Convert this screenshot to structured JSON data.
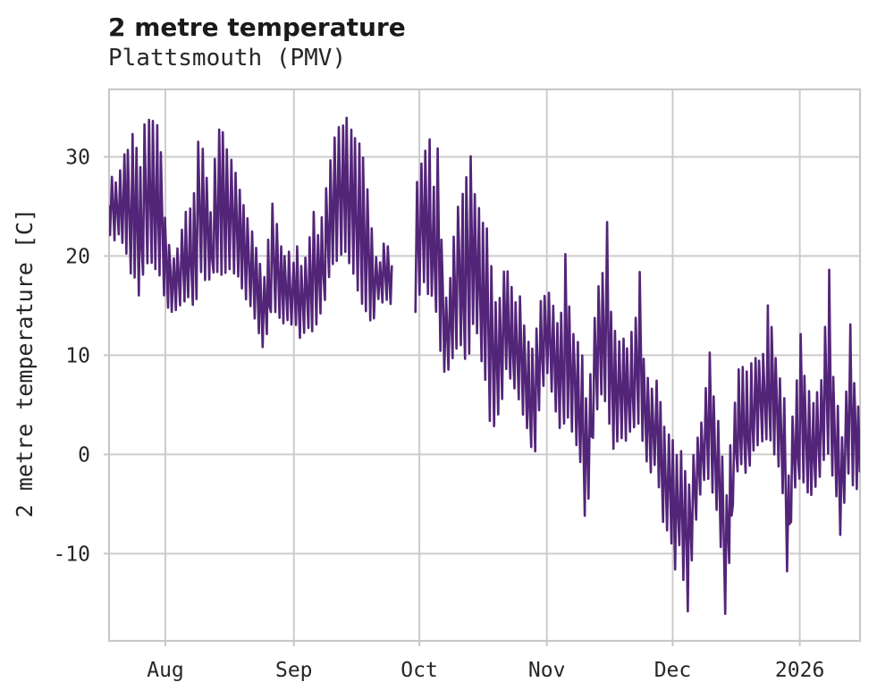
{
  "header": {
    "title": "2 metre temperature",
    "subtitle": "Plattsmouth (PMV)"
  },
  "chart_data": {
    "type": "line",
    "title": "2 metre temperature",
    "subtitle": "Plattsmouth (PMV)",
    "xlabel": "",
    "ylabel": "2 metre temperature [C]",
    "x_tick_labels": [
      "Aug",
      "Sep",
      "Oct",
      "Nov",
      "Dec",
      "2026"
    ],
    "x_tick_day_offsets": [
      13.65,
      44.8,
      75.2,
      106.1,
      136.6,
      167.4
    ],
    "x_range_days": [
      0,
      182
    ],
    "ylim": [
      -18.8,
      36.8
    ],
    "y_ticks": [
      -10,
      0,
      10,
      20,
      30
    ],
    "grid": true,
    "legend": false,
    "background": "#ffffff",
    "grid_color": "#cccccc",
    "spine_color": "#c8c8c8",
    "text_color": "#262626",
    "line_color": "#532579",
    "gap_days": [
      68.6,
      73.8
    ],
    "start_value": 25,
    "end_value": -1.7,
    "series": {
      "name": "2 metre temperature",
      "unit": "C",
      "note_day_indexing": "index = day number from series start; nulls = observation gap",
      "daily_min": [
        22,
        21.5,
        22,
        21,
        20,
        18,
        17.5,
        16,
        18,
        19,
        19,
        18.5,
        18,
        16,
        14.5,
        14,
        14.5,
        15,
        15,
        15.5,
        15,
        15.5,
        18,
        17.5,
        17.5,
        18,
        18,
        18,
        18,
        18.5,
        18,
        17.5,
        16.5,
        15.5,
        14.5,
        13.5,
        12,
        10.6,
        12,
        14,
        14,
        13.5,
        13,
        13.5,
        13,
        13,
        11.5,
        12,
        12.5,
        12,
        13,
        14,
        15.5,
        17.5,
        19,
        19.5,
        20,
        20,
        19,
        18,
        16.5,
        15,
        14,
        13.5,
        13.5,
        15.5,
        15,
        15.5,
        15,
        null,
        null,
        null,
        null,
        null,
        14,
        16,
        17,
        16,
        16,
        14,
        10,
        8,
        8.2,
        9.5,
        10.5,
        11,
        9.5,
        10,
        13,
        12,
        9,
        7.5,
        3,
        2.5,
        4,
        5.5,
        8.5,
        7.5,
        6.5,
        5.5,
        4,
        2.5,
        0.5,
        0,
        4,
        6.5,
        8,
        6,
        4,
        2.5,
        3,
        3.5,
        2,
        0.5,
        -1,
        -6.5,
        -4.5,
        1.5,
        4.5,
        6,
        5,
        3,
        0.5,
        1,
        1.5,
        1,
        2,
        2.5,
        3,
        1,
        -1,
        -2,
        -1.5,
        -3.5,
        -6.8,
        -8,
        -9,
        -11.7,
        -9.5,
        -13,
        -16,
        -11,
        -7,
        -4.5,
        -3,
        -2.5,
        -4,
        -6,
        -9.5,
        -16.3,
        -11,
        -5.5,
        -2,
        -1,
        -2,
        -1.5,
        0,
        0.5,
        1,
        1.5,
        1,
        0,
        -1.5,
        -4,
        -11.9,
        -7,
        -3.5,
        -2.5,
        -3,
        -4,
        -4.5,
        -3.5,
        -2.5,
        -1,
        0,
        -2.5,
        -4.5,
        -8.5,
        -5,
        -2,
        -3.5,
        -3.6
      ],
      "daily_max": [
        28,
        27.5,
        29,
        30.5,
        31,
        32.5,
        31,
        29,
        33.5,
        34,
        34,
        33.5,
        30.5,
        24,
        21.5,
        20,
        21,
        23,
        24.5,
        25,
        26.5,
        31.8,
        31,
        28,
        24.5,
        30,
        33,
        32.5,
        31,
        30,
        28.5,
        27,
        25.5,
        24,
        22.5,
        21,
        19.5,
        18,
        22,
        25.5,
        23.5,
        21,
        20,
        20.5,
        19.5,
        21,
        19,
        20,
        22,
        24.5,
        22.5,
        24,
        27,
        30,
        32,
        33,
        33.5,
        34.3,
        33,
        32,
        31.5,
        30,
        27,
        23,
        20,
        19.5,
        21.5,
        21,
        19,
        null,
        null,
        null,
        null,
        null,
        27.6,
        29.5,
        31,
        31.8,
        27,
        31,
        22,
        16,
        18,
        22,
        25,
        26.5,
        28,
        30.2,
        26.5,
        25,
        23.5,
        23,
        19,
        15.5,
        16,
        18.5,
        18.6,
        17,
        15.5,
        16,
        13,
        11.5,
        11,
        13,
        15.5,
        16,
        16.5,
        15,
        13.5,
        14.5,
        20.5,
        15,
        12.5,
        11.5,
        10,
        6,
        8.5,
        14,
        17,
        18.5,
        23.8,
        14.5,
        12.5,
        11.5,
        12,
        11,
        12.5,
        14,
        18.6,
        10,
        8,
        7,
        7.5,
        5.5,
        3,
        2,
        1.5,
        0,
        0.5,
        -1.5,
        -3,
        0,
        2,
        3.5,
        7,
        10.6,
        6,
        3.5,
        0,
        -4,
        1,
        5.5,
        8.8,
        9,
        8.5,
        9.5,
        10,
        9.5,
        10.5,
        15.4,
        13,
        10,
        8,
        6,
        -2,
        4,
        7.5,
        12.2,
        8,
        6.5,
        5.5,
        6.5,
        7.5,
        13,
        19,
        8,
        5,
        2,
        6.5,
        13.5,
        7.5,
        4.9
      ]
    }
  }
}
